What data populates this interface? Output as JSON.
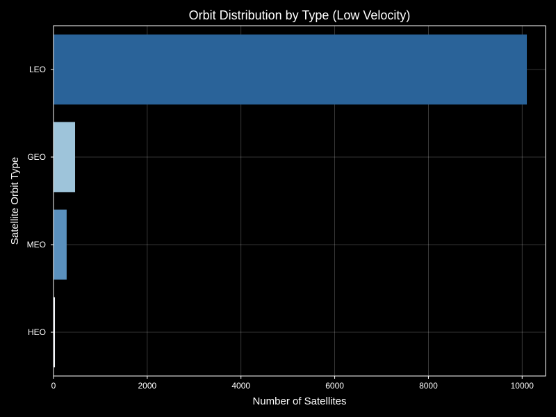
{
  "chart_data": {
    "type": "bar",
    "orientation": "horizontal",
    "title": "Orbit Distribution by Type (Low Velocity)",
    "xlabel": "Number of Satellites",
    "ylabel": "Satellite Orbit Type",
    "categories": [
      "LEO",
      "GEO",
      "MEO",
      "HEO"
    ],
    "values": [
      10100,
      460,
      280,
      30
    ],
    "colors": [
      "#2a6399",
      "#9ec4da",
      "#5a90bd",
      "#f5f8fc"
    ],
    "xlim": [
      0,
      10500
    ],
    "xticks": [
      0,
      2000,
      4000,
      6000,
      8000,
      10000
    ],
    "grid": true,
    "background": "#000000"
  }
}
